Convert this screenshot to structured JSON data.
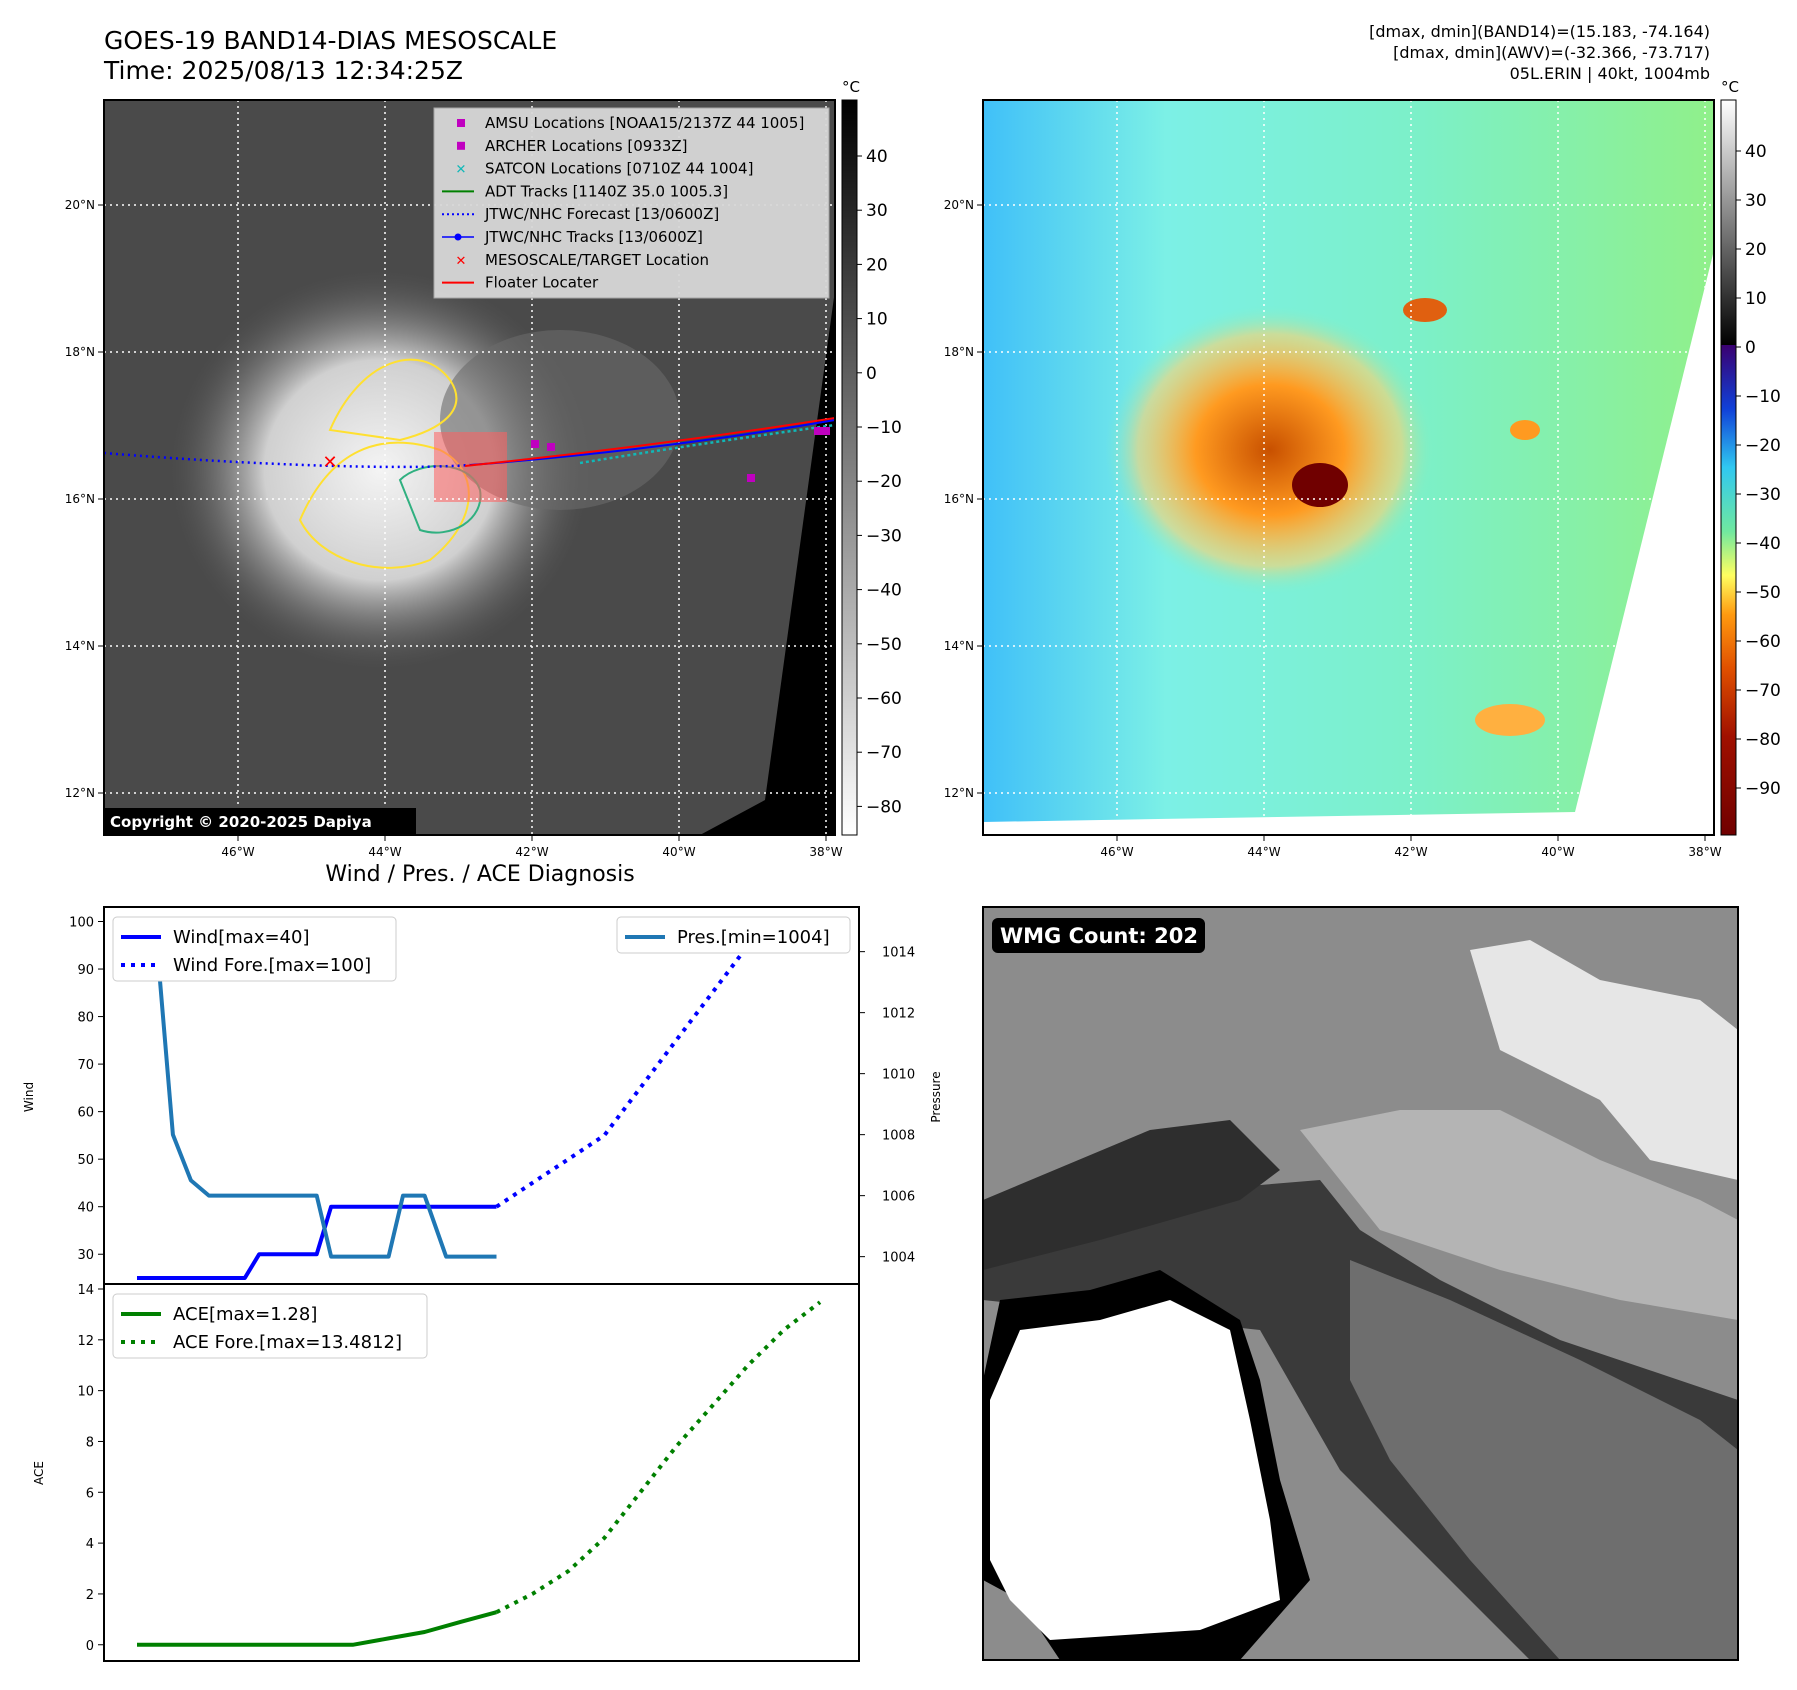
{
  "header": {
    "title_line1": "GOES-19 BAND14-DIAS MESOSCALE",
    "title_line2": "Time: 2025/08/13 12:34:25Z",
    "info_line1": "[dmax, dmin](BAND14)=(15.183, -74.164)",
    "info_line2": "[dmax, dmin](AWV)=(-32.366, -73.717)",
    "info_line3": "05L.ERIN | 40kt, 1004mb"
  },
  "map_panels": {
    "lon_ticks": [
      "46°W",
      "44°W",
      "42°W",
      "40°W",
      "38°W"
    ],
    "lat_ticks": [
      "20°N",
      "18°N",
      "16°N",
      "14°N",
      "12°N"
    ],
    "copyright": "Copyright © 2020-2025 Dapiya",
    "unit": "°C",
    "ir_colorbar_ticks": [
      "40",
      "30",
      "20",
      "10",
      "0",
      "−10",
      "−20",
      "−30",
      "−40",
      "−50",
      "−60",
      "−70",
      "−80"
    ],
    "color_colorbar_ticks": [
      "40",
      "30",
      "20",
      "10",
      "0",
      "−10",
      "−20",
      "−30",
      "−40",
      "−50",
      "−60",
      "−70",
      "−80",
      "−90"
    ],
    "legend": [
      {
        "label": "AMSU Locations [NOAA15/2137Z 44 1005]",
        "marker": "square",
        "color": "#c000c0"
      },
      {
        "label": "ARCHER Locations [0933Z]",
        "marker": "square",
        "color": "#c000c0"
      },
      {
        "label": "SATCON Locations [0710Z 44 1004]",
        "marker": "x",
        "color": "#10b8b8"
      },
      {
        "label": "ADT Tracks [1140Z 35.0 1005.3]",
        "marker": "line",
        "color": "#008000"
      },
      {
        "label": "JTWC/NHC Forecast [13/0600Z]",
        "marker": "dotted",
        "color": "#0000ff"
      },
      {
        "label": "JTWC/NHC Tracks [13/0600Z]",
        "marker": "line-dot",
        "color": "#0000ff"
      },
      {
        "label": "MESOSCALE/TARGET Location",
        "marker": "x",
        "color": "#ff0000"
      },
      {
        "label": "Floater Locater",
        "marker": "line",
        "color": "#ff0000"
      }
    ]
  },
  "wmg": {
    "label": "WMG Count: 202"
  },
  "chart_data": [
    {
      "type": "line",
      "title": "Wind / Pres. / ACE Diagnosis",
      "ylabel": "Wind",
      "y2label": "Pressure",
      "ylim": [
        25,
        102
      ],
      "y2lim": [
        1003.3,
        1015.3
      ],
      "y_ticks": [
        100,
        90,
        80,
        70,
        60,
        50,
        40,
        30
      ],
      "y2_ticks": [
        1014,
        1012,
        1010,
        1008,
        1006,
        1004
      ],
      "series": [
        {
          "name": "Wind[max=40]",
          "axis": "left",
          "style": "solid",
          "color": "#0000ff",
          "x": [
            0,
            1,
            2,
            3,
            3.4,
            4,
            5,
            5.4,
            6,
            7,
            8,
            9,
            10
          ],
          "y": [
            25,
            25,
            25,
            25,
            30,
            30,
            30,
            40,
            40,
            40,
            40,
            40,
            40
          ]
        },
        {
          "name": "Wind Fore.[max=100]",
          "axis": "left",
          "style": "dotted",
          "color": "#0000ff",
          "x": [
            10,
            11,
            12,
            13,
            14,
            15,
            16,
            17,
            18,
            19
          ],
          "y": [
            40,
            45,
            50,
            55,
            65,
            75,
            85,
            95,
            98,
            100
          ]
        },
        {
          "name": "Pres.[min=1004]",
          "axis": "right",
          "style": "solid",
          "color": "#1f77b4",
          "x": [
            0,
            0.5,
            1,
            1.5,
            2,
            3,
            4,
            5,
            5.4,
            6,
            7,
            7.4,
            8,
            8.6,
            9,
            10
          ],
          "y": [
            1015,
            1015,
            1008,
            1006.5,
            1006,
            1006,
            1006,
            1006,
            1004,
            1004,
            1004,
            1006,
            1006,
            1004,
            1004,
            1004
          ]
        }
      ]
    },
    {
      "type": "line",
      "ylabel": "ACE",
      "ylim": [
        -0.6,
        14
      ],
      "y_ticks": [
        14,
        12,
        10,
        8,
        6,
        4,
        2,
        0
      ],
      "series": [
        {
          "name": "ACE[max=1.28]",
          "style": "solid",
          "color": "#008000",
          "x": [
            0,
            1,
            2,
            3,
            4,
            5,
            6,
            7,
            8,
            9,
            10
          ],
          "y": [
            0,
            0,
            0,
            0,
            0,
            0,
            0,
            0.25,
            0.5,
            0.9,
            1.28
          ]
        },
        {
          "name": "ACE Fore.[max=13.4812]",
          "style": "dotted",
          "color": "#008000",
          "x": [
            10,
            11,
            12,
            13,
            14,
            15,
            16,
            17,
            18,
            19
          ],
          "y": [
            1.28,
            2.0,
            2.9,
            4.2,
            6.0,
            7.8,
            9.4,
            11.0,
            12.4,
            13.48
          ]
        }
      ]
    }
  ]
}
